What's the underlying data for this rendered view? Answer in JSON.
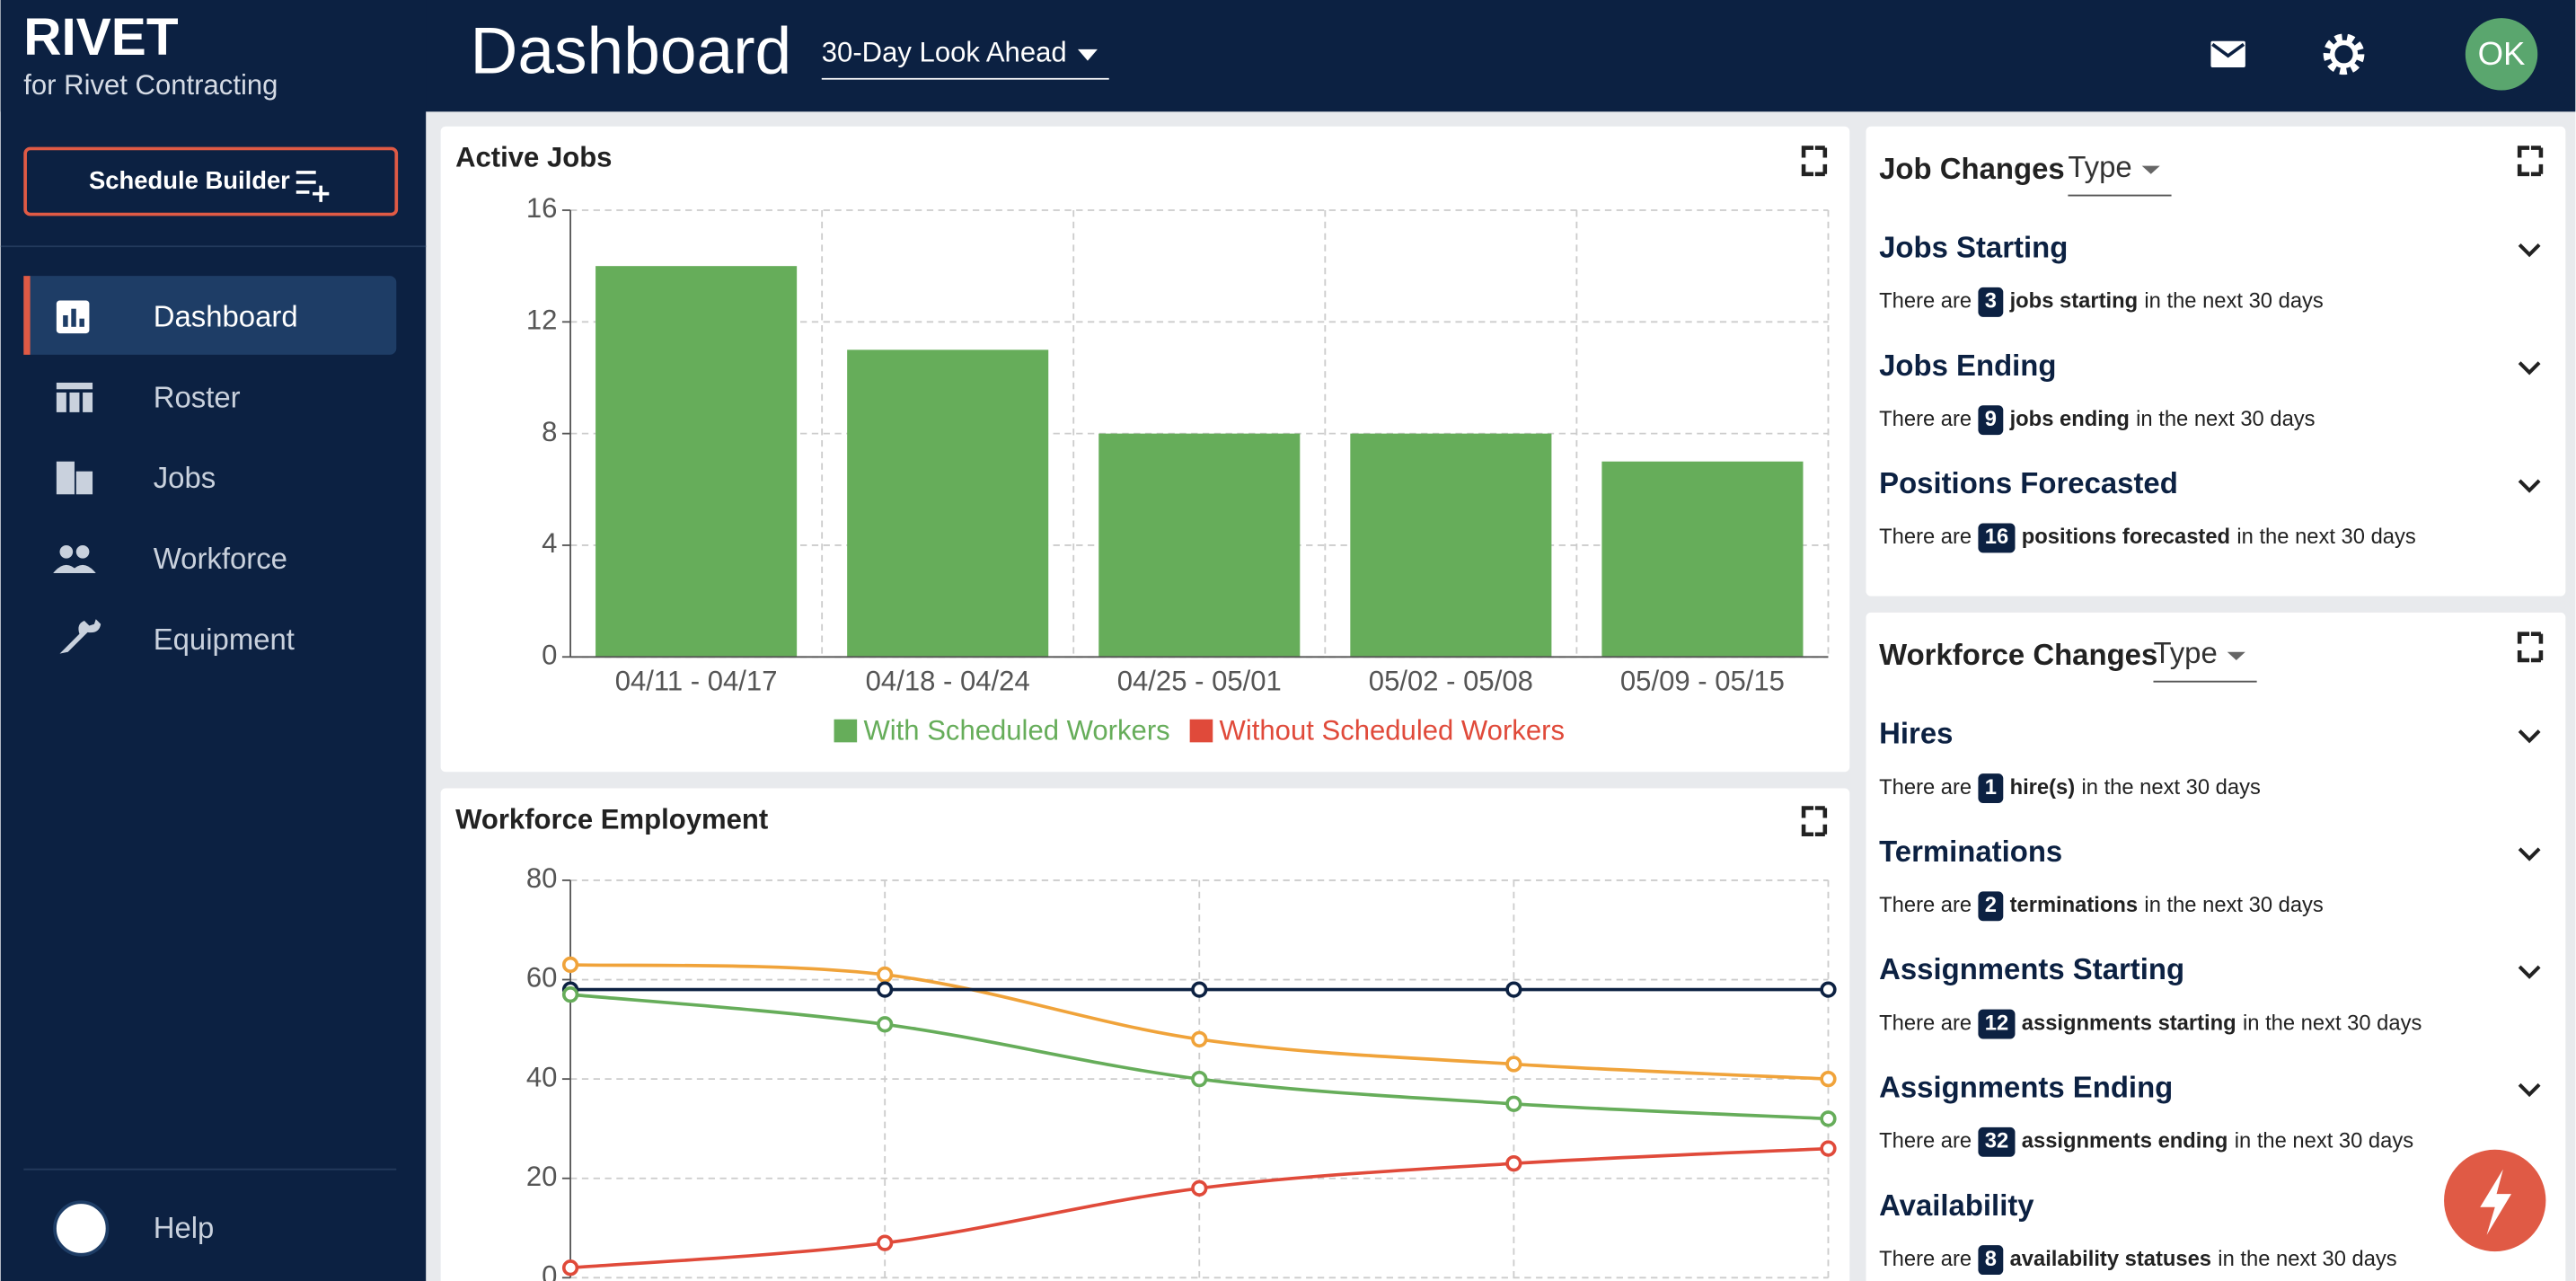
{
  "brand": {
    "name": "RIVET",
    "subtitle": "for Rivet Contracting"
  },
  "header": {
    "title": "Dashboard",
    "filter": "30-Day Look Ahead",
    "avatar": "OK"
  },
  "sidebar": {
    "button": "Schedule Builder",
    "nav": [
      "Dashboard",
      "Roster",
      "Jobs",
      "Workforce",
      "Equipment"
    ],
    "help": "Help"
  },
  "chart_data": [
    {
      "type": "bar",
      "title": "Active Jobs",
      "categories": [
        "04/11 - 04/17",
        "04/18 - 04/24",
        "04/25 - 05/01",
        "05/02 - 05/08",
        "05/09 - 05/15"
      ],
      "series": [
        {
          "name": "With Scheduled Workers",
          "color": "#66ad5a",
          "values": [
            14,
            11,
            8,
            8,
            7
          ]
        },
        {
          "name": "Without Scheduled Workers",
          "color": "#e04a3a",
          "values": [
            0,
            0,
            0,
            0,
            0
          ]
        }
      ],
      "ylim": [
        0,
        16
      ],
      "yticks": [
        0,
        4,
        8,
        12,
        16
      ],
      "grid": true,
      "stacked": true
    },
    {
      "type": "line",
      "title": "Workforce Employment",
      "categories": [
        null,
        null,
        null,
        null,
        null
      ],
      "series": [
        {
          "color": "#f0a33a",
          "values": [
            63,
            61,
            48,
            43,
            40
          ]
        },
        {
          "color": "#0c2142",
          "values": [
            58,
            58,
            58,
            58,
            58
          ]
        },
        {
          "color": "#66ad5a",
          "values": [
            57,
            51,
            40,
            35,
            32
          ]
        },
        {
          "color": "#e04a3a",
          "values": [
            2,
            7,
            18,
            23,
            26
          ]
        }
      ],
      "ylim": [
        0,
        80
      ],
      "yticks": [
        0,
        20,
        40,
        60,
        80
      ],
      "grid": true
    }
  ],
  "job_changes": {
    "title": "Job Changes",
    "filter": "Type",
    "items": [
      {
        "title": "Jobs Starting",
        "prefix": "There are",
        "count": 3,
        "bold": "jobs starting",
        "suffix": "in the next 30 days"
      },
      {
        "title": "Jobs Ending",
        "prefix": "There are",
        "count": 9,
        "bold": "jobs ending",
        "suffix": "in the next 30 days"
      },
      {
        "title": "Positions Forecasted",
        "prefix": "There are",
        "count": 16,
        "bold": "positions forecasted",
        "suffix": "in the next 30 days"
      }
    ]
  },
  "workforce_changes": {
    "title": "Workforce Changes",
    "filter": "Type",
    "items": [
      {
        "title": "Hires",
        "prefix": "There are",
        "count": 1,
        "bold": "hire(s)",
        "suffix": "in the next 30 days"
      },
      {
        "title": "Terminations",
        "prefix": "There are",
        "count": 2,
        "bold": "terminations",
        "suffix": "in the next 30 days"
      },
      {
        "title": "Assignments Starting",
        "prefix": "There are",
        "count": 12,
        "bold": "assignments starting",
        "suffix": "in the next 30 days"
      },
      {
        "title": "Assignments Ending",
        "prefix": "There are",
        "count": 32,
        "bold": "assignments ending",
        "suffix": "in the next 30 days"
      },
      {
        "title": "Availability",
        "prefix": "There are",
        "count": 8,
        "bold": "availability statuses",
        "suffix": "in the next 30 days"
      }
    ]
  }
}
